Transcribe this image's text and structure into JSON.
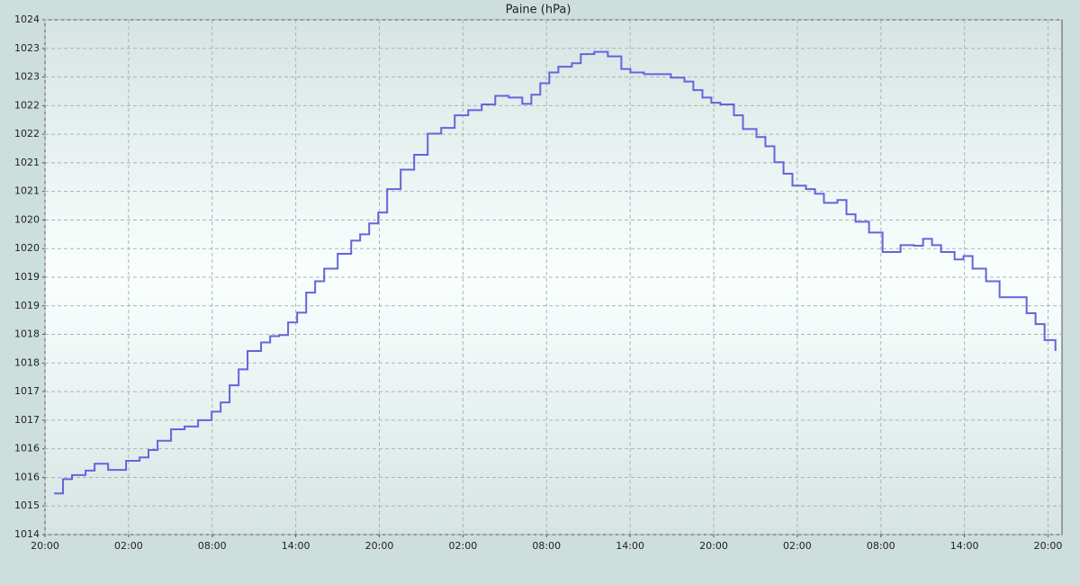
{
  "chart_data": {
    "type": "line",
    "title": "Paine (hPa)",
    "xlim": [
      0,
      73
    ],
    "ylim": [
      1014.5,
      1023.5
    ],
    "xticks": [
      {
        "value": 0,
        "label": "20:00"
      },
      {
        "value": 6,
        "label": "02:00"
      },
      {
        "value": 12,
        "label": "08:00"
      },
      {
        "value": 18,
        "label": "14:00"
      },
      {
        "value": 24,
        "label": "20:00"
      },
      {
        "value": 30,
        "label": "02:00"
      },
      {
        "value": 36,
        "label": "08:00"
      },
      {
        "value": 42,
        "label": "14:00"
      },
      {
        "value": 48,
        "label": "20:00"
      },
      {
        "value": 54,
        "label": "02:00"
      },
      {
        "value": 60,
        "label": "08:00"
      },
      {
        "value": 66,
        "label": "14:00"
      },
      {
        "value": 72,
        "label": "20:00"
      }
    ],
    "yticks": [
      {
        "value": 1014.5,
        "label": "1014"
      },
      {
        "value": 1015,
        "label": "1015"
      },
      {
        "value": 1015.5,
        "label": "1016"
      },
      {
        "value": 1016,
        "label": "1016"
      },
      {
        "value": 1016.5,
        "label": "1017"
      },
      {
        "value": 1017,
        "label": "1017"
      },
      {
        "value": 1017.5,
        "label": "1018"
      },
      {
        "value": 1018,
        "label": "1018"
      },
      {
        "value": 1018.5,
        "label": "1019"
      },
      {
        "value": 1019,
        "label": "1019"
      },
      {
        "value": 1019.5,
        "label": "1020"
      },
      {
        "value": 1020,
        "label": "1020"
      },
      {
        "value": 1020.5,
        "label": "1021"
      },
      {
        "value": 1021,
        "label": "1021"
      },
      {
        "value": 1021.5,
        "label": "1022"
      },
      {
        "value": 1022,
        "label": "1022"
      },
      {
        "value": 1022.5,
        "label": "1023"
      },
      {
        "value": 1023,
        "label": "1023"
      },
      {
        "value": 1023.5,
        "label": "1024"
      }
    ],
    "grid": true,
    "step": true,
    "x": [
      0.65,
      1.29,
      1.94,
      2.91,
      3.56,
      4.53,
      5.82,
      6.79,
      7.43,
      8.08,
      9.05,
      10.02,
      10.99,
      11.96,
      12.61,
      13.25,
      13.9,
      14.54,
      15.51,
      16.16,
      16.81,
      17.45,
      18.1,
      18.75,
      19.39,
      20.04,
      21.01,
      21.98,
      22.62,
      23.27,
      23.92,
      24.56,
      25.53,
      26.5,
      27.47,
      28.44,
      29.41,
      30.38,
      31.35,
      32.32,
      33.29,
      34.26,
      34.91,
      35.55,
      36.2,
      36.85,
      37.82,
      38.46,
      39.43,
      40.4,
      41.37,
      42.02,
      42.99,
      43.96,
      44.93,
      45.9,
      46.54,
      47.19,
      47.83,
      48.48,
      49.45,
      50.1,
      51.07,
      51.71,
      52.36,
      53.01,
      53.65,
      54.62,
      55.27,
      55.91,
      56.88,
      57.53,
      58.18,
      59.15,
      60.12,
      60.76,
      61.41,
      62.38,
      63.03,
      63.67,
      64.32,
      65.29,
      65.93,
      66.58,
      67.55,
      68.52,
      69.49,
      70.46,
      71.1,
      71.75,
      72.53
    ],
    "series": [
      {
        "color": "#6464dc",
        "values": [
          1015.22,
          1015.47,
          1015.54,
          1015.62,
          1015.74,
          1015.63,
          1015.79,
          1015.85,
          1015.98,
          1016.14,
          1016.34,
          1016.39,
          1016.5,
          1016.65,
          1016.81,
          1017.11,
          1017.39,
          1017.71,
          1017.86,
          1017.97,
          1017.99,
          1018.21,
          1018.38,
          1018.73,
          1018.93,
          1019.15,
          1019.41,
          1019.64,
          1019.75,
          1019.94,
          1020.13,
          1020.54,
          1020.88,
          1021.14,
          1021.51,
          1021.61,
          1021.83,
          1021.92,
          1022.02,
          1022.17,
          1022.14,
          1022.03,
          1022.19,
          1022.39,
          1022.58,
          1022.68,
          1022.74,
          1022.9,
          1022.94,
          1022.86,
          1022.64,
          1022.58,
          1022.55,
          1022.55,
          1022.49,
          1022.42,
          1022.27,
          1022.14,
          1022.05,
          1022.02,
          1021.83,
          1021.59,
          1021.45,
          1021.29,
          1021.01,
          1020.81,
          1020.6,
          1020.54,
          1020.46,
          1020.3,
          1020.35,
          1020.1,
          1019.97,
          1019.78,
          1019.44,
          1019.44,
          1019.56,
          1019.55,
          1019.67,
          1019.56,
          1019.44,
          1019.31,
          1019.37,
          1019.15,
          1018.93,
          1018.65,
          1018.65,
          1018.37,
          1018.18,
          1017.9,
          1017.71
        ]
      }
    ]
  }
}
